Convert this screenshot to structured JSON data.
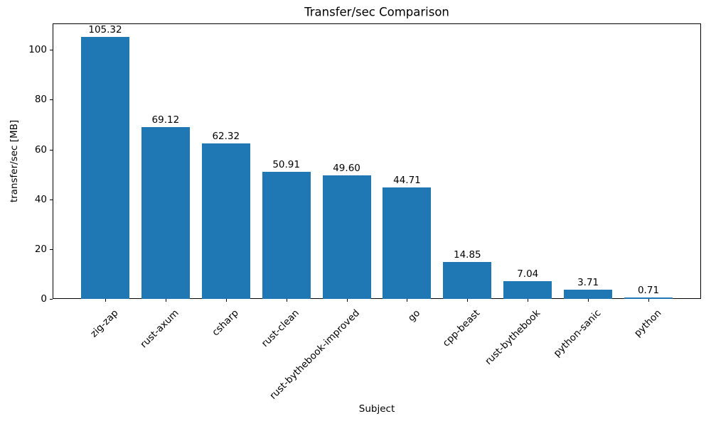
{
  "chart_data": {
    "type": "bar",
    "title": "Transfer/sec Comparison",
    "xlabel": "Subject",
    "ylabel": "transfer/sec [MB]",
    "categories": [
      "zig-zap",
      "rust-axum",
      "csharp",
      "rust-clean",
      "rust-bythebook-improved",
      "go",
      "cpp-beast",
      "rust-bythebook",
      "python-sanic",
      "python"
    ],
    "values": [
      105.32,
      69.12,
      62.32,
      50.91,
      49.6,
      44.71,
      14.85,
      7.04,
      3.71,
      0.71
    ],
    "value_labels": [
      "105.32",
      "69.12",
      "62.32",
      "50.91",
      "49.60",
      "44.71",
      "14.85",
      "7.04",
      "3.71",
      "0.71"
    ],
    "ylim": [
      0,
      110.6
    ],
    "ytick_values": [
      0,
      20,
      40,
      60,
      80,
      100
    ],
    "bar_color": "#1f77b4",
    "axis_color": "#000000",
    "grid": false,
    "legend": null,
    "x_tick_rotation_deg": 45
  }
}
